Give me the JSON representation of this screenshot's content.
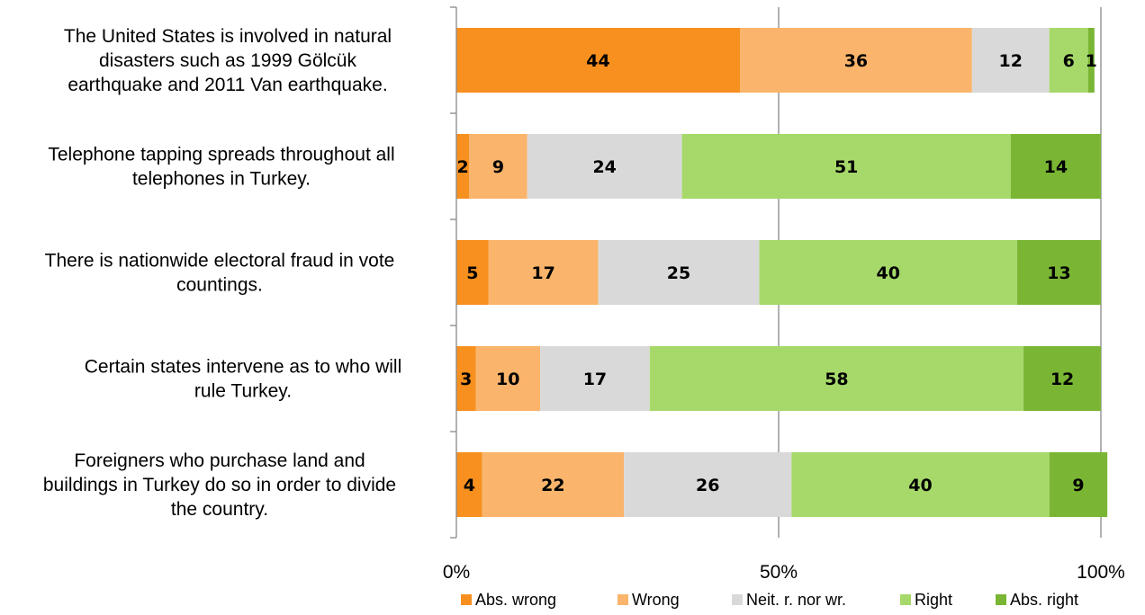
{
  "chart_data": {
    "type": "bar",
    "orientation": "horizontal",
    "stacked": "percent",
    "categories": [
      [
        "The United States is involved in natural",
        "disasters such as 1999 Gölcük",
        "earthquake and 2011 Van earthquake."
      ],
      [
        "Telephone tapping spreads throughout all",
        "telephones in Turkey."
      ],
      [
        "There is nationwide electoral fraud in vote",
        "countings."
      ],
      [
        "Certain states intervene as to who will",
        "rule Turkey."
      ],
      [
        "Foreigners who purchase land and",
        "buildings in Turkey do so in order to divide",
        "the country."
      ]
    ],
    "series": [
      {
        "name": "Abs. wrong",
        "color": "#f7901e",
        "values": [
          44,
          2,
          5,
          3,
          4
        ]
      },
      {
        "name": "Wrong",
        "color": "#fab46b",
        "values": [
          36,
          9,
          17,
          10,
          22
        ]
      },
      {
        "name": "Neit. r. nor wr.",
        "color": "#d9d9d9",
        "values": [
          12,
          24,
          25,
          17,
          26
        ]
      },
      {
        "name": "Right",
        "color": "#a6d96a",
        "values": [
          6,
          51,
          40,
          58,
          40
        ]
      },
      {
        "name": "Abs. right",
        "color": "#7ab634",
        "values": [
          1,
          14,
          13,
          12,
          9
        ]
      }
    ],
    "xticks": [
      "0%",
      "50%",
      "100%"
    ],
    "xlim": [
      0,
      100
    ],
    "grid": true,
    "legend": "bottom",
    "title": "",
    "xlabel": "",
    "ylabel": ""
  }
}
